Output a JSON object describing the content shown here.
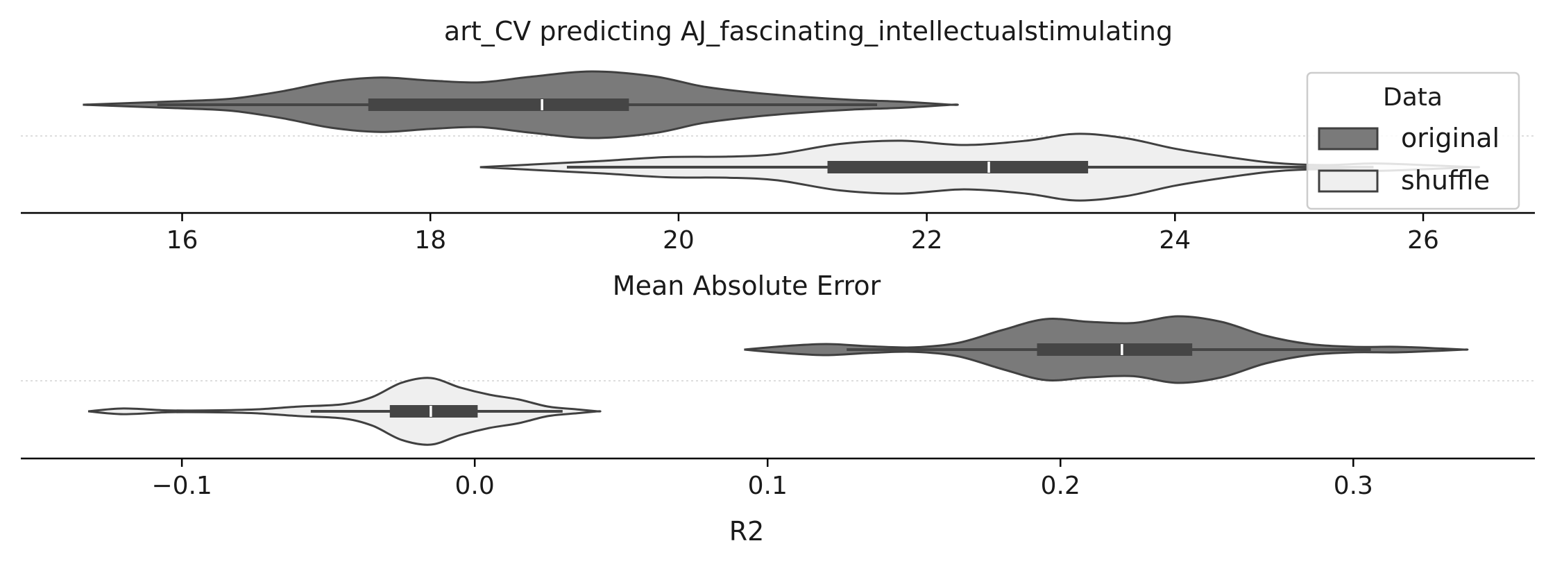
{
  "title": "art_CV predicting AJ_fascinating_intellectualstimulating",
  "legend": {
    "title": "Data",
    "entries": [
      {
        "label": "original",
        "color": "#7a7a7a"
      },
      {
        "label": "shuffle",
        "color": "#efefef"
      }
    ],
    "placement": "top-right"
  },
  "colors": {
    "original": "#7a7a7a",
    "shuffle": "#efefef",
    "edge": "#404040",
    "box": "#454545",
    "median": "#ffffff",
    "axis": "#000000",
    "guide": "#dddddd"
  },
  "chart_data": [
    {
      "type": "violin",
      "orientation": "horizontal",
      "xlabel": "Mean Absolute Error",
      "xlim": [
        14.7,
        26.9
      ],
      "xticks": [
        16,
        18,
        20,
        22,
        24,
        26
      ],
      "xtick_labels": [
        "16",
        "18",
        "20",
        "22",
        "24",
        "26"
      ],
      "grid": false,
      "series": [
        {
          "name": "original",
          "row": 0,
          "min": 15.2,
          "max": 22.2,
          "whisker": [
            15.8,
            21.6
          ],
          "q1": 17.5,
          "median": 18.9,
          "q3": 19.6,
          "density": [
            [
              15.2,
              0.0
            ],
            [
              15.6,
              0.03
            ],
            [
              16.0,
              0.06
            ],
            [
              16.4,
              0.1
            ],
            [
              16.8,
              0.22
            ],
            [
              17.2,
              0.38
            ],
            [
              17.6,
              0.45
            ],
            [
              18.0,
              0.4
            ],
            [
              18.4,
              0.37
            ],
            [
              18.8,
              0.46
            ],
            [
              19.3,
              0.55
            ],
            [
              19.8,
              0.47
            ],
            [
              20.2,
              0.3
            ],
            [
              20.6,
              0.2
            ],
            [
              21.0,
              0.13
            ],
            [
              21.4,
              0.08
            ],
            [
              21.8,
              0.05
            ],
            [
              22.2,
              0.0
            ]
          ]
        },
        {
          "name": "shuffle",
          "row": 1,
          "min": 18.4,
          "max": 26.4,
          "whisker": [
            19.1,
            25.6
          ],
          "q1": 21.2,
          "median": 22.5,
          "q3": 23.3,
          "density": [
            [
              18.4,
              0.0
            ],
            [
              18.9,
              0.06
            ],
            [
              19.4,
              0.12
            ],
            [
              19.9,
              0.19
            ],
            [
              20.4,
              0.2
            ],
            [
              20.8,
              0.25
            ],
            [
              21.3,
              0.44
            ],
            [
              21.8,
              0.5
            ],
            [
              22.3,
              0.42
            ],
            [
              22.8,
              0.5
            ],
            [
              23.2,
              0.63
            ],
            [
              23.6,
              0.55
            ],
            [
              24.0,
              0.35
            ],
            [
              24.4,
              0.2
            ],
            [
              24.8,
              0.08
            ],
            [
              25.2,
              0.04
            ],
            [
              25.6,
              0.07
            ],
            [
              26.0,
              0.04
            ],
            [
              26.4,
              0.0
            ]
          ]
        }
      ]
    },
    {
      "type": "violin",
      "orientation": "horizontal",
      "xlabel": "R2",
      "xlim": [
        -0.155,
        0.362
      ],
      "xticks": [
        -0.1,
        0.0,
        0.1,
        0.2,
        0.3
      ],
      "xtick_labels": [
        "−0.1",
        "0.0",
        "0.1",
        "0.2",
        "0.3"
      ],
      "grid": false,
      "series": [
        {
          "name": "original",
          "row": 0,
          "min": 0.092,
          "max": 0.338,
          "whisker": [
            0.127,
            0.306
          ],
          "q1": 0.192,
          "median": 0.221,
          "q3": 0.245,
          "density": [
            [
              0.092,
              0.0
            ],
            [
              0.105,
              0.06
            ],
            [
              0.12,
              0.1
            ],
            [
              0.135,
              0.06
            ],
            [
              0.15,
              0.04
            ],
            [
              0.165,
              0.12
            ],
            [
              0.18,
              0.35
            ],
            [
              0.195,
              0.55
            ],
            [
              0.21,
              0.5
            ],
            [
              0.225,
              0.48
            ],
            [
              0.24,
              0.6
            ],
            [
              0.255,
              0.5
            ],
            [
              0.27,
              0.25
            ],
            [
              0.285,
              0.1
            ],
            [
              0.3,
              0.05
            ],
            [
              0.315,
              0.05
            ],
            [
              0.33,
              0.02
            ],
            [
              0.338,
              0.0
            ]
          ]
        },
        {
          "name": "shuffle",
          "row": 1,
          "min": -0.132,
          "max": 0.042,
          "whisker": [
            -0.056,
            0.03
          ],
          "q1": -0.029,
          "median": -0.015,
          "q3": 0.001,
          "density": [
            [
              -0.132,
              0.0
            ],
            [
              -0.12,
              0.06
            ],
            [
              -0.105,
              0.02
            ],
            [
              -0.09,
              0.02
            ],
            [
              -0.075,
              0.04
            ],
            [
              -0.06,
              0.1
            ],
            [
              -0.045,
              0.15
            ],
            [
              -0.035,
              0.3
            ],
            [
              -0.025,
              0.6
            ],
            [
              -0.015,
              0.7
            ],
            [
              -0.005,
              0.5
            ],
            [
              0.005,
              0.35
            ],
            [
              0.015,
              0.25
            ],
            [
              0.025,
              0.1
            ],
            [
              0.035,
              0.04
            ],
            [
              0.042,
              0.0
            ]
          ]
        }
      ]
    }
  ]
}
